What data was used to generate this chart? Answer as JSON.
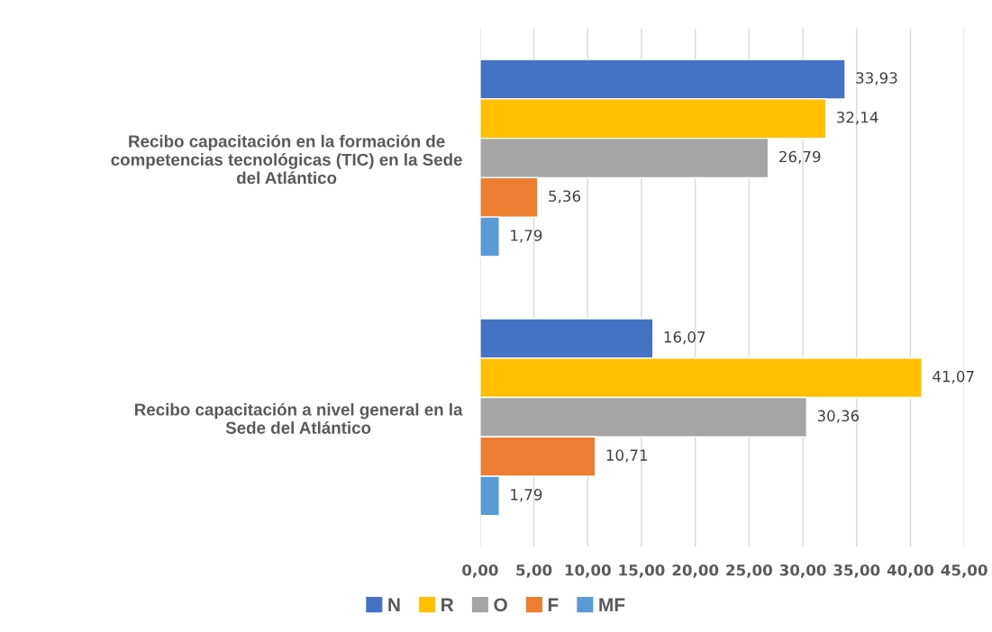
{
  "chart_data": {
    "type": "bar",
    "orientation": "horizontal",
    "categories": [
      "Recibo capacitación en la formación de competencias tecnológicas (TIC) en la Sede del Atlántico",
      "Recibo capacitación a nivel general en la Sede del Atlántico"
    ],
    "series": [
      {
        "name": "N",
        "color": "#4472c4",
        "values": [
          33.93,
          16.07
        ],
        "value_labels": [
          "33,93",
          "16,07"
        ]
      },
      {
        "name": "R",
        "color": "#ffc000",
        "values": [
          32.14,
          41.07
        ],
        "value_labels": [
          "32,14",
          "41,07"
        ]
      },
      {
        "name": "O",
        "color": "#a5a5a5",
        "values": [
          26.79,
          30.36
        ],
        "value_labels": [
          "26,79",
          "30,36"
        ]
      },
      {
        "name": "F",
        "color": "#ed7d31",
        "values": [
          5.36,
          10.71
        ],
        "value_labels": [
          "5,36",
          "10,71"
        ]
      },
      {
        "name": "MF",
        "color": "#5b9bd5",
        "values": [
          1.79,
          1.79
        ],
        "value_labels": [
          "1,79",
          "1,79"
        ]
      }
    ],
    "xlim": [
      0,
      45
    ],
    "xticks": [
      {
        "value": 0,
        "label": "0,00"
      },
      {
        "value": 5,
        "label": "5,00"
      },
      {
        "value": 10,
        "label": "10,00"
      },
      {
        "value": 15,
        "label": "15,00"
      },
      {
        "value": 20,
        "label": "20,00"
      },
      {
        "value": 25,
        "label": "25,00"
      },
      {
        "value": 30,
        "label": "30,00"
      },
      {
        "value": 35,
        "label": "35,00"
      },
      {
        "value": 40,
        "label": "40,00"
      },
      {
        "value": 45,
        "label": "45,00"
      }
    ],
    "grid": "x",
    "legend": "bottom"
  }
}
